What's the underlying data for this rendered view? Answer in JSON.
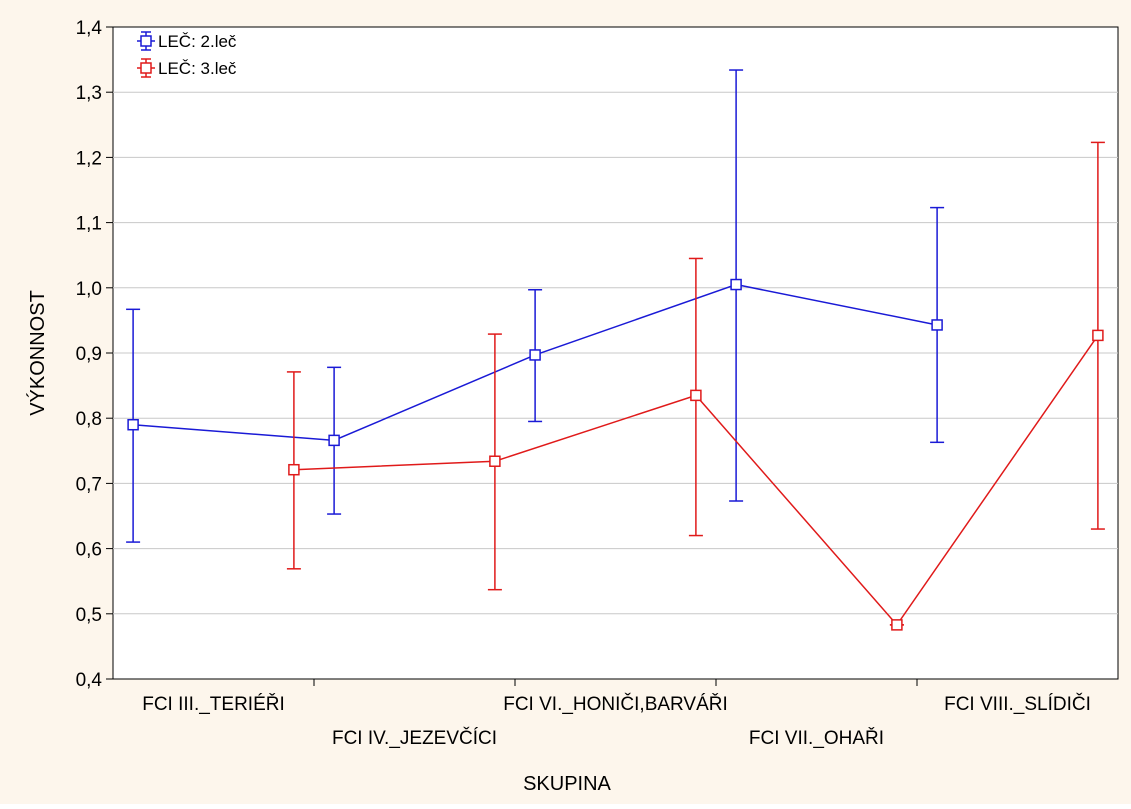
{
  "chart_data": {
    "type": "line",
    "xlabel": "SKUPINA",
    "ylabel": "VÝKONNOST",
    "ylim": [
      0.4,
      1.4
    ],
    "yticks": [
      "0,4",
      "0,5",
      "0,6",
      "0,7",
      "0,8",
      "0,9",
      "1,0",
      "1,1",
      "1,2",
      "1,3",
      "1,4"
    ],
    "grid": true,
    "legend_position": "top-left",
    "categories": [
      "FCI III._TERIÉŘI",
      "FCI IV._JEZEVČÍCI",
      "FCI VI._HONIČI,BARVÁŘI",
      "FCI VII._OHAŘI",
      "FCI VIII._SLÍDIČI"
    ],
    "series": [
      {
        "name": "LEČ: 2.leč",
        "color": "#1a1ad6",
        "values": [
          0.79,
          0.766,
          0.897,
          1.005,
          0.943
        ],
        "error_low": [
          0.61,
          0.653,
          0.795,
          0.673,
          0.763
        ],
        "error_high": [
          0.967,
          0.878,
          0.997,
          1.334,
          1.123
        ]
      },
      {
        "name": "LEČ: 3.leč",
        "color": "#e01a1a",
        "values": [
          0.721,
          0.734,
          0.835,
          0.483,
          0.927
        ],
        "error_low": [
          0.569,
          0.537,
          0.62,
          0.483,
          0.63
        ],
        "error_high": [
          0.871,
          0.929,
          1.045,
          0.483,
          1.223
        ]
      }
    ]
  }
}
